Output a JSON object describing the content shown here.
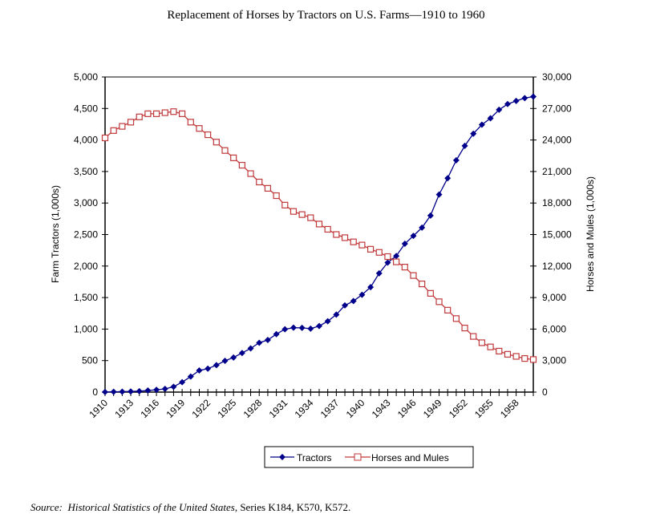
{
  "chart_data": {
    "type": "line",
    "title": "Replacement of Horses by Tractors on U.S. Farms—1910 to 1960",
    "x": [
      1910,
      1911,
      1912,
      1913,
      1914,
      1915,
      1916,
      1917,
      1918,
      1919,
      1920,
      1921,
      1922,
      1923,
      1924,
      1925,
      1926,
      1927,
      1928,
      1929,
      1930,
      1931,
      1932,
      1933,
      1934,
      1935,
      1936,
      1937,
      1938,
      1939,
      1940,
      1941,
      1942,
      1943,
      1944,
      1945,
      1946,
      1947,
      1948,
      1949,
      1950,
      1951,
      1952,
      1953,
      1954,
      1955,
      1956,
      1957,
      1958,
      1959,
      1960
    ],
    "x_tick_labels": [
      "1910",
      "1913",
      "1916",
      "1919",
      "1922",
      "1925",
      "1928",
      "1931",
      "1934",
      "1937",
      "1940",
      "1943",
      "1946",
      "1949",
      "1952",
      "1955",
      "1958"
    ],
    "ylabel_left": "Farm Tractors (1,000s)",
    "ylabel_right": "Horses and Mules (1,000s)",
    "ylim_left": [
      0,
      5000
    ],
    "ylim_right": [
      0,
      30000
    ],
    "y_ticks_left": [
      "0",
      "500",
      "1,000",
      "1,500",
      "2,000",
      "2,500",
      "3,000",
      "3,500",
      "4,000",
      "4,500",
      "5,000"
    ],
    "y_ticks_right": [
      "0",
      "3,000",
      "6,000",
      "9,000",
      "12,000",
      "15,000",
      "18,000",
      "21,000",
      "24,000",
      "27,000",
      "30,000"
    ],
    "grid": false,
    "legend_position": "bottom-center",
    "series": [
      {
        "name": "Tractors",
        "axis": "left",
        "color": "#00008b",
        "marker": "diamond",
        "values": [
          1,
          4,
          7,
          10,
          15,
          25,
          37,
          51,
          85,
          158,
          246,
          343,
          372,
          428,
          496,
          549,
          621,
          693,
          782,
          827,
          920,
          997,
          1022,
          1019,
          1006,
          1048,
          1125,
          1230,
          1375,
          1445,
          1545,
          1665,
          1885,
          2055,
          2160,
          2354,
          2480,
          2610,
          2800,
          3135,
          3394,
          3678,
          3907,
          4100,
          4243,
          4345,
          4480,
          4570,
          4620,
          4665,
          4688
        ]
      },
      {
        "name": "Horses and Mules",
        "axis": "right",
        "color": "#c0393b",
        "marker": "square-open",
        "values": [
          24200,
          24900,
          25300,
          25700,
          26200,
          26500,
          26500,
          26600,
          26700,
          26500,
          25700,
          25100,
          24500,
          23800,
          23000,
          22300,
          21600,
          20800,
          20000,
          19400,
          18700,
          17800,
          17200,
          16900,
          16600,
          16000,
          15500,
          15000,
          14700,
          14300,
          14000,
          13600,
          13300,
          12900,
          12400,
          11900,
          11100,
          10300,
          9400,
          8600,
          7800,
          7000,
          6100,
          5300,
          4700,
          4300,
          3900,
          3600,
          3400,
          3200,
          3100
        ]
      }
    ]
  },
  "source": {
    "label": "Source:",
    "title": "Historical Statistics of the United States",
    "rest": ", Series K184, K570, K572."
  }
}
